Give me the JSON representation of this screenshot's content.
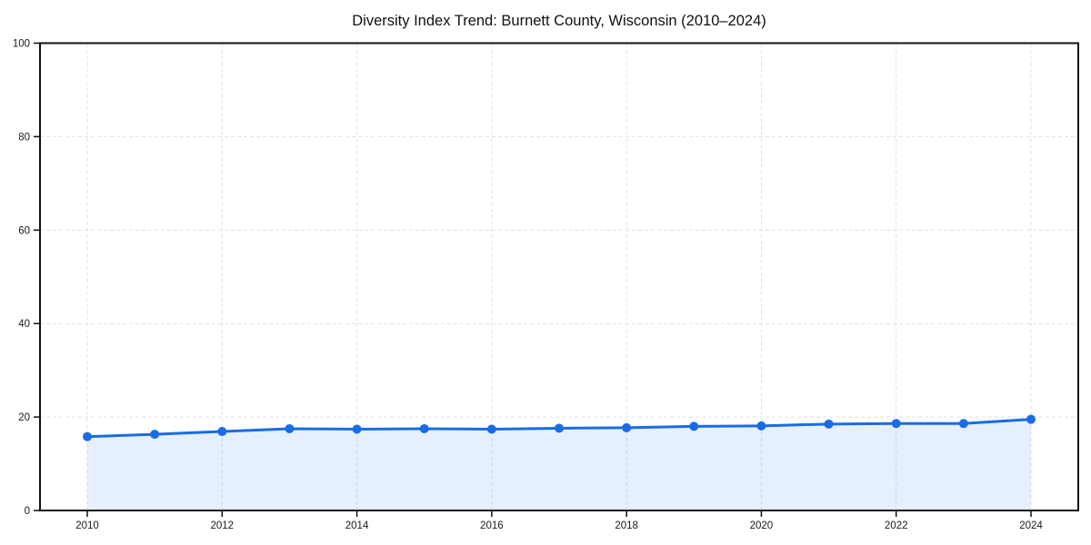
{
  "chart_data": {
    "type": "line",
    "title": "Diversity Index Trend: Burnett County, Wisconsin (2010–2024)",
    "series_name": "Diversity Index",
    "x": [
      2010,
      2011,
      2012,
      2013,
      2014,
      2015,
      2016,
      2017,
      2018,
      2019,
      2020,
      2021,
      2022,
      2023,
      2024
    ],
    "values": [
      15.8,
      16.3,
      16.9,
      17.5,
      17.4,
      17.5,
      17.4,
      17.6,
      17.7,
      18.0,
      18.1,
      18.5,
      18.6,
      18.6,
      19.5
    ],
    "xlabel": "",
    "ylabel": "",
    "xlim": [
      2010,
      2024
    ],
    "ylim": [
      0,
      100
    ],
    "xticks": [
      2010,
      2012,
      2014,
      2016,
      2018,
      2020,
      2022,
      2024
    ],
    "yticks": [
      0,
      20,
      40,
      60,
      80,
      100
    ],
    "grid": "dashed",
    "legend_position": "none",
    "area_fill": true,
    "marker": "circle",
    "colors": {
      "line": "#1a6ce4",
      "marker": "#1a6ce4",
      "area": "#1a6ce4",
      "gridline": "#e0e0e0",
      "spine": "#111111",
      "tick_label": "#1a1a1a",
      "title": "#111111",
      "background": "#ffffff"
    },
    "area_opacity": 0.11
  }
}
